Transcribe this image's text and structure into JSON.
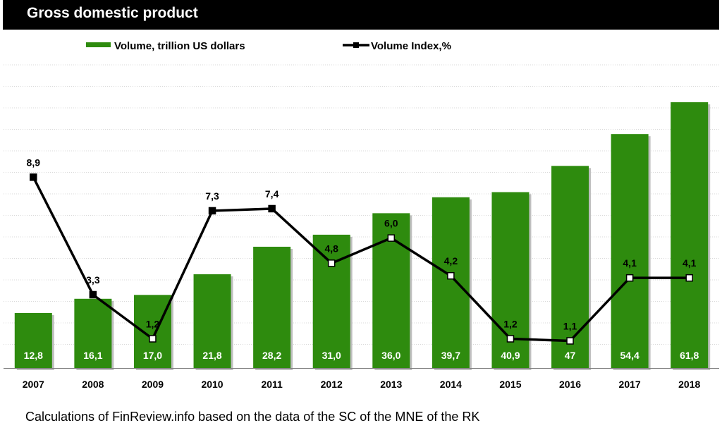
{
  "title": "Gross domestic product",
  "source_note": "Calculations of FinReview.info based on the data of the SC of the MNE of the RK",
  "chart_data": {
    "type": "bar",
    "categories": [
      "2007",
      "2008",
      "2009",
      "2010",
      "2011",
      "2012",
      "2013",
      "2014",
      "2015",
      "2016",
      "2017",
      "2018"
    ],
    "series": [
      {
        "name": "Volume, trillion US dollars",
        "type": "bar",
        "color": "#2e8b0e",
        "values": [
          12.8,
          16.1,
          17.0,
          21.8,
          28.2,
          31.0,
          36.0,
          39.7,
          40.9,
          47,
          54.4,
          61.8
        ],
        "labels": [
          "12,8",
          "16,1",
          "17,0",
          "21,8",
          "28,2",
          "31,0",
          "36,0",
          "39,7",
          "40,9",
          "47",
          "54,4",
          "61,8"
        ]
      },
      {
        "name": "Volume Index,%",
        "type": "line",
        "color": "#000000",
        "values": [
          8.9,
          3.3,
          1.2,
          7.3,
          7.4,
          4.8,
          6.0,
          4.2,
          1.2,
          1.1,
          4.1,
          4.1
        ],
        "labels": [
          "8,9",
          "3,3",
          "1,2",
          "7,3",
          "7,4",
          "4,8",
          "6,0",
          "4,2",
          "1,2",
          "1,1",
          "4,1",
          "4,1"
        ]
      }
    ],
    "legend_position": "top",
    "grid": true
  }
}
